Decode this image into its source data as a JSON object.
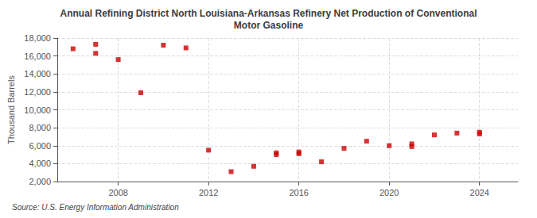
{
  "chart_data": {
    "type": "scatter",
    "title": "Annual Refining District North Louisiana-Arkansas Refinery Net Production of Conventional\nMotor Gasoline",
    "ylabel": "Thousand Barrels",
    "source": "Source: U.S. Energy Information Administration",
    "x": [
      2006,
      2007,
      2007,
      2008,
      2009,
      2010,
      2011,
      2012,
      2013,
      2014,
      2015,
      2015,
      2016,
      2016,
      2017,
      2018,
      2019,
      2020,
      2021,
      2021,
      2022,
      2023,
      2024,
      2024
    ],
    "values": [
      16800,
      17300,
      16300,
      15600,
      11900,
      17200,
      16900,
      5500,
      3100,
      3700,
      5000,
      5200,
      5300,
      5100,
      4200,
      5700,
      6500,
      6000,
      6200,
      5900,
      7200,
      7400,
      7300,
      7500
    ],
    "color": "#cc0000",
    "marker": "square",
    "xlim": [
      2005.3,
      2025.7
    ],
    "xticks": [
      2008,
      2012,
      2016,
      2020,
      2024
    ],
    "ylim": [
      2000,
      18000
    ],
    "yticks": [
      {
        "value": 2000,
        "label": "2,000"
      },
      {
        "value": 4000,
        "label": "4,000"
      },
      {
        "value": 6000,
        "label": "6,000"
      },
      {
        "value": 8000,
        "label": "8,000"
      },
      {
        "value": 10000,
        "label": "10,000"
      },
      {
        "value": 12000,
        "label": "12,000"
      },
      {
        "value": 14000,
        "label": "14,000"
      },
      {
        "value": 16000,
        "label": "16,000"
      },
      {
        "value": 18000,
        "label": "18,000"
      }
    ],
    "grid": true
  }
}
